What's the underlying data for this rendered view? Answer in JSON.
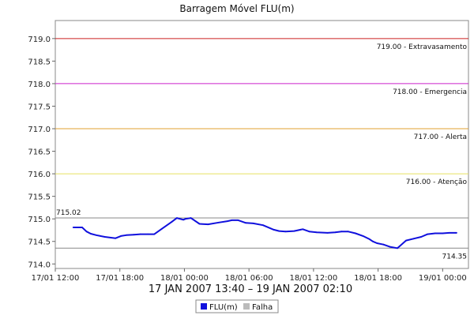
{
  "chart_data": {
    "type": "line",
    "title": "Barragem Móvel FLU(m)",
    "subtitle": "17 JAN 2007 13:40 – 19 JAN 2007 02:10",
    "ylim": [
      713.9,
      719.4
    ],
    "yticks": [
      714.0,
      714.5,
      715.0,
      715.5,
      716.0,
      716.5,
      717.0,
      717.5,
      718.0,
      718.5,
      719.0
    ],
    "ytick_labels": [
      "714.0",
      "714.5",
      "715.0",
      "715.5",
      "716.0",
      "716.5",
      "717.0",
      "717.5",
      "718.0",
      "718.5",
      "719.0"
    ],
    "x_unit": "hours_from_2007-01-17T12:00",
    "xlim": [
      0,
      38.4
    ],
    "xticks": [
      0,
      6,
      12,
      18,
      24,
      30,
      36
    ],
    "xtick_labels": [
      "17/01 12:00",
      "17/01 18:00",
      "18/01 00:00",
      "18/01 06:00",
      "18/01 12:00",
      "18/01 18:00",
      "19/01 00:00"
    ],
    "grid": false,
    "reference_lines": [
      {
        "value": 719.0,
        "label": "719.00 - Extravasamento",
        "color": "#cc2222"
      },
      {
        "value": 718.0,
        "label": "718.00 - Emergencia",
        "color": "#cc22cc"
      },
      {
        "value": 717.0,
        "label": "717.00 - Alerta",
        "color": "#e0a030"
      },
      {
        "value": 716.0,
        "label": "716.00 - Atenção",
        "color": "#e8e060"
      },
      {
        "value": 715.02,
        "label": "715.02",
        "color": "#888888",
        "label_side": "left-above"
      },
      {
        "value": 714.35,
        "label": "714.35",
        "color": "#888888",
        "label_side": "right-below"
      }
    ],
    "series": [
      {
        "name": "FLU(m)",
        "color": "#1010dd",
        "x": [
          1.67,
          2.5,
          2.9,
          3.3,
          3.8,
          4.6,
          5.6,
          6.1,
          6.6,
          7.3,
          7.9,
          8.6,
          9.2,
          9.9,
          10.8,
          11.3,
          11.9,
          12.1,
          12.6,
          13.4,
          14.2,
          15.2,
          16.0,
          16.4,
          17.0,
          17.7,
          18.4,
          19.3,
          20.3,
          20.8,
          21.4,
          22.2,
          23.0,
          23.6,
          24.3,
          25.3,
          26.0,
          26.6,
          27.2,
          27.9,
          28.6,
          29.2,
          29.5,
          29.9,
          30.5,
          31.1,
          31.8,
          32.6,
          33.3,
          34.0,
          34.6,
          35.3,
          36.0,
          36.6,
          37.3
        ],
        "values": [
          714.81,
          714.81,
          714.72,
          714.67,
          714.64,
          714.6,
          714.57,
          714.62,
          714.64,
          714.65,
          714.66,
          714.66,
          714.66,
          714.78,
          714.93,
          715.02,
          714.98,
          715.0,
          715.02,
          714.89,
          714.88,
          714.92,
          714.95,
          714.97,
          714.97,
          714.91,
          714.9,
          714.86,
          714.76,
          714.73,
          714.72,
          714.73,
          714.77,
          714.72,
          714.7,
          714.69,
          714.7,
          714.72,
          714.72,
          714.68,
          714.62,
          714.55,
          714.5,
          714.46,
          714.43,
          714.38,
          714.35,
          714.52,
          714.56,
          714.6,
          714.66,
          714.68,
          714.68,
          714.69,
          714.69
        ]
      }
    ],
    "legend": {
      "placement": "bottom-center",
      "entries": [
        {
          "name": "FLU(m)",
          "color": "#1010dd"
        },
        {
          "name": "Falha",
          "color": "#bbbbbb"
        }
      ]
    }
  }
}
